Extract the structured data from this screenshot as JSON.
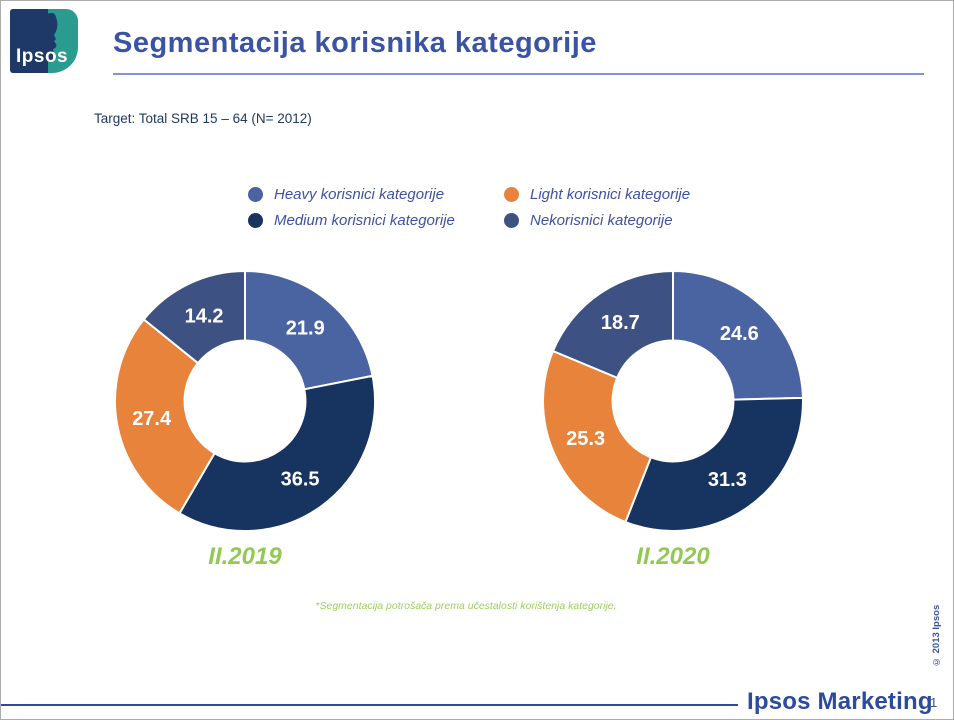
{
  "slide": {
    "logo_text": "Ipsos",
    "title": "Segmentacija korisnika kategorije",
    "target_line": "Target: Total SRB 15 – 64 (N= 2012)",
    "legend": {
      "items": [
        {
          "label": "Heavy korisnici kategorije",
          "color": "#4a64a2"
        },
        {
          "label": "Light korisnici kategorije",
          "color": "#e8833b"
        },
        {
          "label": "Medium korisnici kategorije",
          "color": "#17335f"
        },
        {
          "label": "Nekorisnici kategorije",
          "color": "#3d5183"
        }
      ]
    },
    "footnote": "*Segmentacija potrošača prema učestalosti korištenja kategorije.",
    "copyright_vertical": "© 2013 Ipsos",
    "footer": {
      "brand": "Ipsos Marketing",
      "page_number": "1"
    },
    "colors": {
      "title_blue": "#3a53a4",
      "green_accent": "#92c952",
      "footer_blue": "#2c4a9e",
      "logo_navy": "#1e3968",
      "logo_teal": "#2a9b8f"
    }
  },
  "chart_data": [
    {
      "type": "pie",
      "subtype": "donut",
      "title": "II.2019",
      "categories": [
        "Heavy korisnici kategorije",
        "Medium korisnici kategorije",
        "Light korisnici kategorije",
        "Nekorisnici kategorije"
      ],
      "values": [
        21.9,
        36.5,
        27.4,
        14.2
      ],
      "colors": [
        "#4a64a2",
        "#17335f",
        "#e8833b",
        "#3d5183"
      ],
      "start_angle_deg": 0,
      "direction": "clockwise",
      "inner_radius_ratio": 0.465,
      "label_radius_ratio": 0.73,
      "label_color": "#ffffff",
      "legend_position": "top"
    },
    {
      "type": "pie",
      "subtype": "donut",
      "title": "II.2020",
      "categories": [
        "Heavy korisnici kategorije",
        "Medium korisnici kategorije",
        "Light korisnici kategorije",
        "Nekorisnici kategorije"
      ],
      "values": [
        24.6,
        31.3,
        25.3,
        18.7
      ],
      "colors": [
        "#4a64a2",
        "#17335f",
        "#e8833b",
        "#3d5183"
      ],
      "start_angle_deg": 0,
      "direction": "clockwise",
      "inner_radius_ratio": 0.465,
      "label_radius_ratio": 0.73,
      "label_color": "#ffffff",
      "legend_position": "top"
    }
  ]
}
